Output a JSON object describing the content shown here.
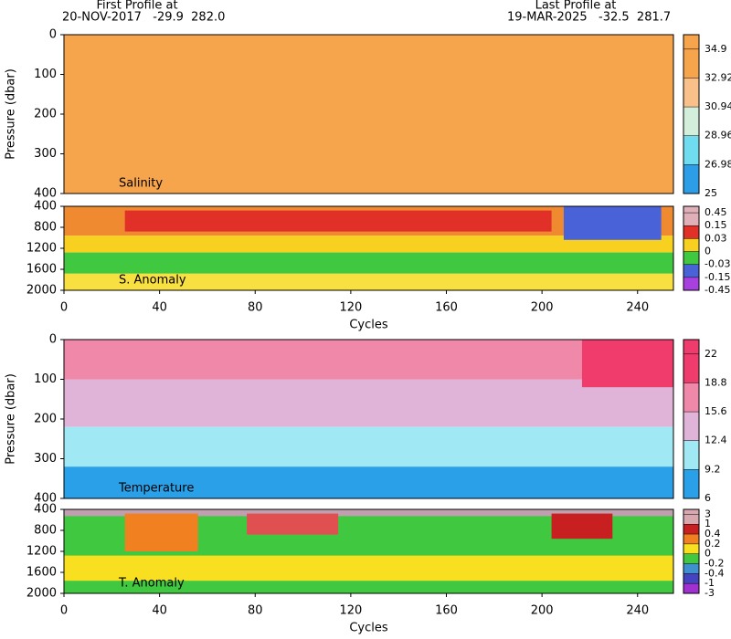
{
  "header": {
    "first_title": "First Profile at",
    "first_info": "20-NOV-2017   -29.9  282.0",
    "last_title": "Last Profile at",
    "last_info": "19-MAR-2025   -32.5  281.7"
  },
  "chart_data": [
    {
      "type": "heatmap",
      "label": "Salinity",
      "ylabel": "Pressure (dbar)",
      "xlim": [
        0,
        255
      ],
      "ylim": [
        0,
        400
      ],
      "yticks": [
        0,
        100,
        200,
        300,
        400
      ],
      "colorbar": {
        "levels": [
          34.9,
          32.92,
          30.94,
          28.96,
          26.98,
          25
        ],
        "colors": [
          "#f7a54c",
          "#f9c08a",
          "#d4eedc",
          "#6fdcf0",
          "#2c9ee8"
        ]
      }
    },
    {
      "type": "heatmap",
      "label": "S. Anomaly",
      "xlabel": "Cycles",
      "xlim": [
        0,
        255
      ],
      "xticks": [
        0,
        40,
        80,
        120,
        160,
        200,
        240
      ],
      "ylim": [
        400,
        2000
      ],
      "yticks": [
        400,
        800,
        1200,
        1600,
        2000
      ],
      "colorbar": {
        "levels": [
          0.45,
          0.15,
          0.03,
          0,
          -0.03,
          -0.15,
          -0.45
        ],
        "colors": [
          "#e0b0b8",
          "#e03028",
          "#f8d020",
          "#40c840",
          "#4a62d8",
          "#a840e0"
        ]
      }
    },
    {
      "type": "heatmap",
      "label": "Temperature",
      "ylabel": "Pressure (dbar)",
      "xlim": [
        0,
        255
      ],
      "ylim": [
        0,
        400
      ],
      "yticks": [
        0,
        100,
        200,
        300,
        400
      ],
      "colorbar": {
        "levels": [
          22,
          18.8,
          15.6,
          12.4,
          9.2,
          6
        ],
        "colors": [
          "#f03c6c",
          "#f088aa",
          "#e0b4d8",
          "#a0e8f4",
          "#2aa0e8"
        ]
      }
    },
    {
      "type": "heatmap",
      "label": "T. Anomaly",
      "xlabel": "Cycles",
      "xlim": [
        0,
        255
      ],
      "xticks": [
        0,
        40,
        80,
        120,
        160,
        200,
        240
      ],
      "ylim": [
        400,
        2000
      ],
      "yticks": [
        400,
        800,
        1200,
        1600,
        2000
      ],
      "colorbar": {
        "levels": [
          3,
          1,
          0.4,
          0.2,
          0,
          -0.2,
          -0.4,
          -1,
          -3
        ],
        "colors": [
          "#d8a8b0",
          "#c82020",
          "#f08020",
          "#f8e020",
          "#40c840",
          "#4090d0",
          "#4444c0",
          "#a030d0"
        ]
      }
    }
  ]
}
